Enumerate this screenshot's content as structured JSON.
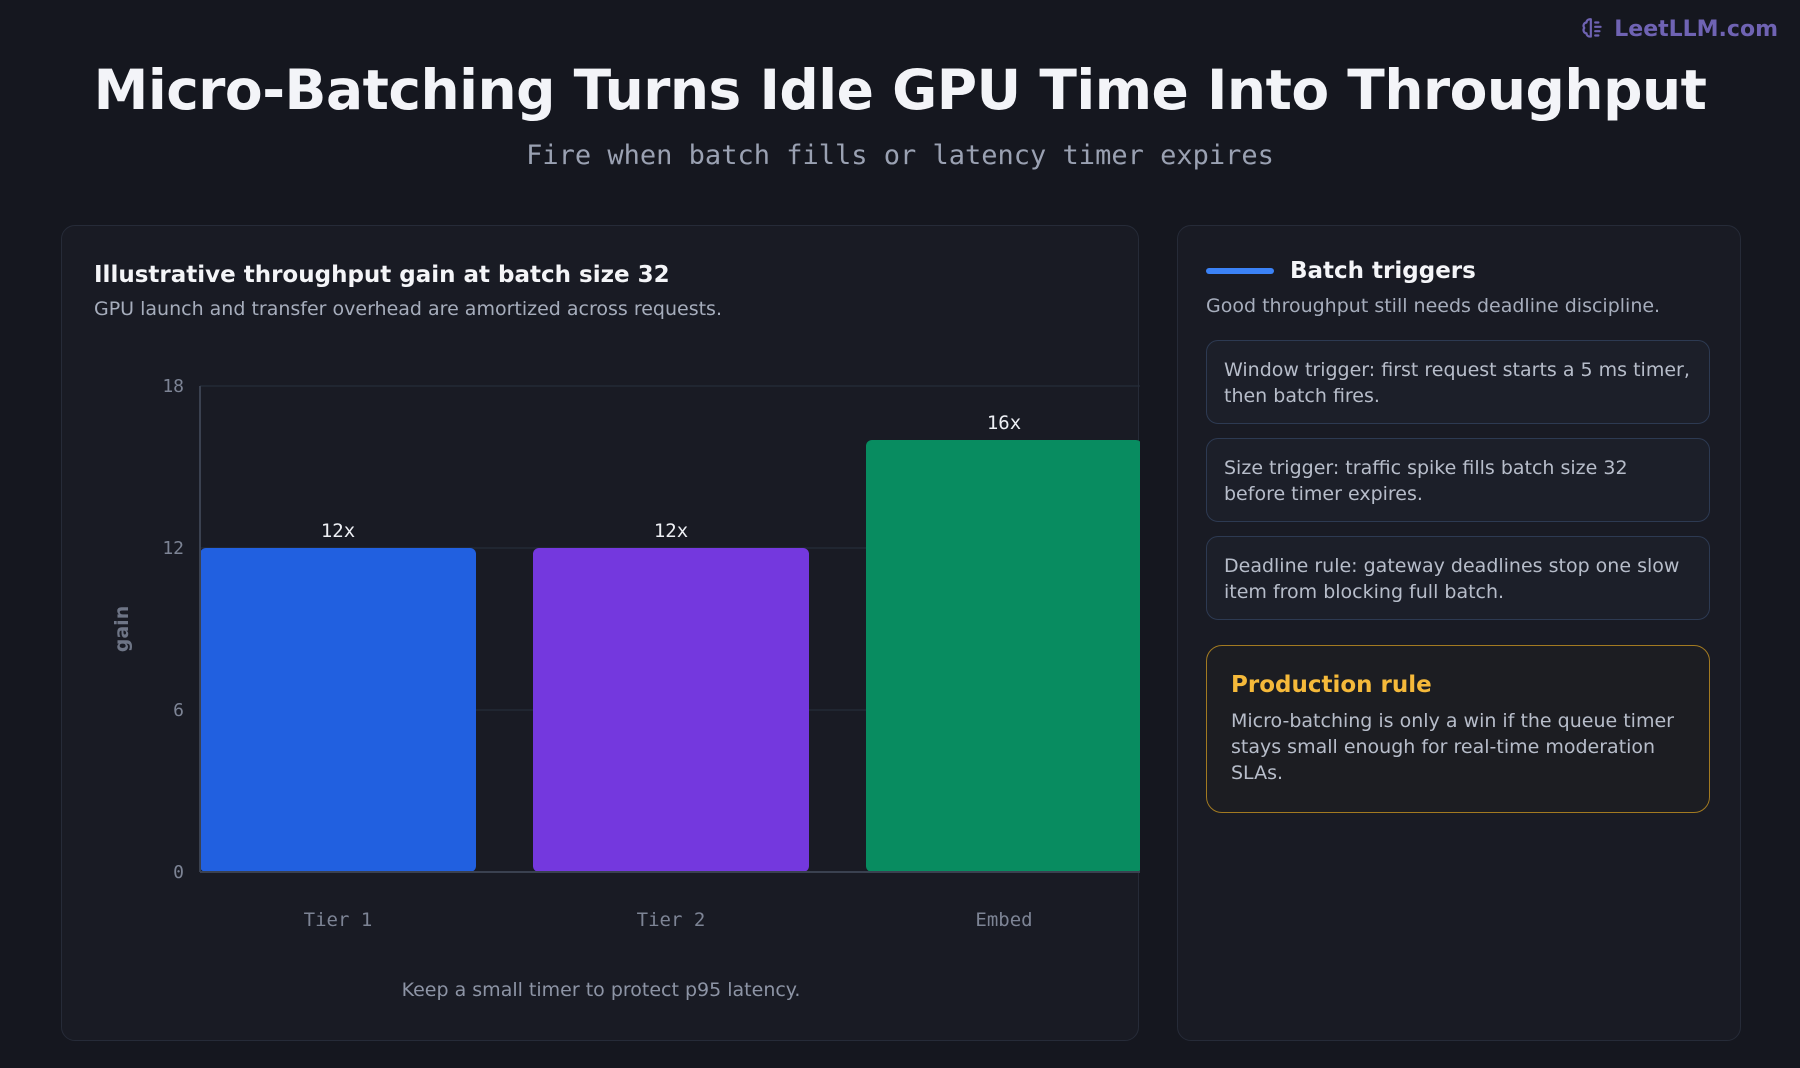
{
  "brand": {
    "name": "LeetLLM.com",
    "icon": "brain-icon"
  },
  "header": {
    "title": "Micro-Batching Turns Idle GPU Time Into Throughput",
    "subtitle": "Fire when batch fills or latency timer expires"
  },
  "chart_panel": {
    "footnote": "Keep a small timer to protect p95 latency."
  },
  "chart_data": {
    "type": "bar",
    "title": "Illustrative throughput gain at batch size 32",
    "subtitle": "GPU launch and transfer overhead are amortized across requests.",
    "categories": [
      "Tier 1",
      "Tier 2",
      "Embed"
    ],
    "values": [
      12,
      12,
      16
    ],
    "data_labels": [
      "12x",
      "12x",
      "16x"
    ],
    "colors": [
      "#2160e0",
      "#7438de",
      "#088c60"
    ],
    "xlabel": "",
    "ylabel": "gain",
    "ylim": [
      0,
      18
    ],
    "yticks": [
      0,
      6,
      12,
      18
    ],
    "grid": true,
    "legend": "none"
  },
  "side_panel": {
    "title": "Batch triggers",
    "subtitle": "Good throughput still needs deadline discipline.",
    "triggers": [
      {
        "text": "Window trigger: first request starts a 5 ms timer, then batch fires."
      },
      {
        "text": "Size trigger: traffic spike fills batch size 32 before timer expires."
      },
      {
        "text": "Deadline rule: gateway deadlines stop one slow item from blocking full batch."
      }
    ],
    "rule": {
      "title": "Production rule",
      "body": "Micro-batching is only a win if the queue timer stays small enough for real-time moderation SLAs."
    }
  }
}
